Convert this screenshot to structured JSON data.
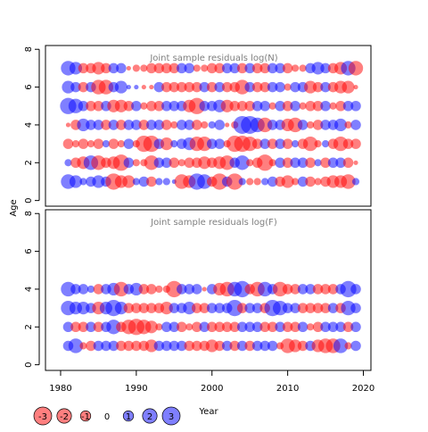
{
  "chart_data": {
    "type": "bubble",
    "shared_xlabel": "Year",
    "shared_ylabel": "Age",
    "xlim": [
      1978,
      2021
    ],
    "x_ticks": [
      1980,
      1990,
      2000,
      2010,
      2020
    ],
    "colors": {
      "positive": "#0000ff",
      "negative": "#ff0000",
      "fill_opacity": 0.5
    },
    "panels": [
      {
        "id": "top",
        "title": "Joint sample residuals log(N)",
        "ylim": [
          -0.3,
          8.2
        ],
        "y_ticks": [
          0,
          2,
          4,
          6,
          8
        ],
        "years": [
          1981,
          1982,
          1983,
          1984,
          1985,
          1986,
          1987,
          1988,
          1989,
          1990,
          1991,
          1992,
          1993,
          1994,
          1995,
          1996,
          1997,
          1998,
          1999,
          2000,
          2001,
          2002,
          2003,
          2004,
          2005,
          2006,
          2007,
          2008,
          2009,
          2010,
          2011,
          2012,
          2013,
          2014,
          2015,
          2016,
          2017,
          2018,
          2019
        ],
        "rows": [
          {
            "age": 1,
            "residuals": [
              2,
              1.5,
              0.5,
              1,
              1.5,
              1,
              -2.5,
              -1.5,
              -1.5,
              0.5,
              1,
              -1,
              0.5,
              0.5,
              0.2,
              -2,
              -1.5,
              2.5,
              2,
              -1,
              -2.5,
              1,
              -2.5,
              0.5,
              -0.5,
              -0.5,
              0.5,
              1,
              -1,
              -1.5,
              -0.5,
              1,
              -1,
              -0.5,
              -1,
              -1.5,
              -1.5,
              -2,
              0.5
            ]
          },
          {
            "age": 2,
            "residuals": [
              0.5,
              -1,
              -1.5,
              2,
              -2,
              -1,
              -1.5,
              -2.5,
              1,
              -0.5,
              -0.5,
              -2,
              1,
              1,
              -1,
              -0.5,
              -1,
              -1,
              -1.5,
              -1,
              -1.5,
              -2,
              1,
              2,
              -0.5,
              -1,
              -2.5,
              -0.5,
              1,
              -1,
              1,
              1,
              -1,
              0.5,
              -1,
              1,
              1,
              -1,
              -0.2
            ]
          },
          {
            "age": 3,
            "residuals": [
              -1,
              -0.5,
              -1,
              -0.5,
              -1,
              0.5,
              -1,
              -0.5,
              1,
              -0.5,
              -2.5,
              -2.5,
              1,
              -1.5,
              0.5,
              1,
              1.5,
              -2,
              -2,
              1,
              1,
              -0.5,
              -2.5,
              -2.5,
              -2,
              -1,
              1,
              -1,
              1,
              -1,
              0.5,
              -1,
              -2,
              -0.5,
              0.5,
              -1,
              -2,
              -1,
              -1
            ]
          },
          {
            "age": 4,
            "residuals": [
              -0.2,
              -1,
              1.5,
              1,
              1,
              -1,
              1,
              -1,
              1,
              1,
              -1,
              1,
              1,
              -1,
              -0.5,
              1,
              1,
              -1,
              -0.5,
              0.5,
              1,
              -0.2,
              -0.5,
              3,
              3,
              2,
              -2,
              1,
              1,
              -1.5,
              -2,
              1,
              -0.5,
              -1,
              1,
              1,
              1.5,
              -0.5,
              1
            ]
          },
          {
            "age": 5,
            "residuals": [
              2.5,
              2,
              1,
              -1,
              -1,
              1,
              -1.5,
              -1.5,
              -1,
              1,
              -0.5,
              -1,
              -1,
              1,
              1,
              1,
              -1.5,
              -2.5,
              1,
              1,
              1.5,
              -1.5,
              -1,
              -1,
              -1,
              1,
              1,
              -0.5,
              1,
              -1,
              1,
              -0.5,
              -1,
              -1,
              1,
              -0.5,
              -1,
              1,
              1
            ]
          },
          {
            "age": 6,
            "residuals": [
              1.5,
              1,
              -1,
              1,
              -2,
              -2,
              1,
              1.5,
              0.2,
              0.2,
              -0.2,
              -0.2,
              1,
              -1,
              -1,
              -1,
              -1,
              -1,
              1,
              -1,
              1,
              -1,
              -1,
              -2,
              1,
              -1,
              -1,
              1,
              1,
              -0.5,
              1,
              1,
              -1.5,
              -1,
              1,
              -1,
              -1.5,
              -1.5,
              -0.2
            ]
          },
          {
            "age": 7,
            "residuals": [
              2,
              1.5,
              -1,
              -1,
              -1.5,
              -1,
              1,
              1,
              -0.2,
              -0.5,
              -0.5,
              -1,
              -1,
              -1,
              -1,
              1,
              1,
              -0.5,
              -0.5,
              -1,
              -1,
              1,
              1,
              -1,
              1,
              -1,
              -1,
              1,
              1,
              -1,
              -0.5,
              -0.5,
              1,
              1.5,
              1,
              -1,
              -1.5,
              2,
              -2
            ]
          }
        ]
      },
      {
        "id": "bottom",
        "title": "Joint sample residuals log(F)",
        "ylim": [
          -0.3,
          8.2
        ],
        "y_ticks": [
          0,
          2,
          4,
          6,
          8
        ],
        "years": [
          1981,
          1982,
          1983,
          1984,
          1985,
          1986,
          1987,
          1988,
          1989,
          1990,
          1991,
          1992,
          1993,
          1994,
          1995,
          1996,
          1997,
          1998,
          1999,
          2000,
          2001,
          2002,
          2003,
          2004,
          2005,
          2006,
          2007,
          2008,
          2009,
          2010,
          2011,
          2012,
          2013,
          2014,
          2015,
          2016,
          2017,
          2018,
          2019
        ],
        "rows": [
          {
            "age": 1,
            "residuals": [
              1,
              2,
              -0.5,
              -1,
              1,
              1,
              1,
              -1,
              -1,
              -1,
              -1,
              -1.5,
              1,
              1,
              1,
              1,
              -1,
              -1,
              -1,
              -1.5,
              -1,
              1,
              -1,
              1,
              -1,
              1,
              1,
              1,
              -0.5,
              -2,
              -1.5,
              -1,
              1,
              -1.5,
              -2,
              -2,
              2,
              -0.5,
              1
            ]
          },
          {
            "age": 2,
            "residuals": [
              1,
              -1,
              -1,
              1,
              -1,
              1,
              2,
              -1,
              -2,
              -2.5,
              -2,
              -1.5,
              -0.5,
              1,
              1,
              -1,
              -0.5,
              -1,
              1,
              -1,
              -1,
              -1,
              -1,
              1,
              1,
              1,
              -1,
              -1,
              1,
              -1,
              -1,
              1,
              -0.5,
              -1,
              1,
              1,
              1,
              -1,
              1
            ]
          },
          {
            "age": 3,
            "residuals": [
              2,
              1.5,
              1.5,
              1,
              -1.5,
              1.5,
              2.5,
              1.5,
              -1,
              -1,
              -1,
              -1,
              -1,
              -1.5,
              1,
              1,
              1.5,
              -1,
              -1,
              1,
              1,
              1,
              2.5,
              -1,
              1,
              1,
              -1,
              2.5,
              2,
              1,
              1,
              -1,
              -1,
              -1,
              -1,
              1,
              -1,
              2,
              1
            ]
          },
          {
            "age": 4,
            "residuals": [
              2,
              1,
              1,
              0.5,
              -1,
              1,
              1.5,
              -2,
              1,
              1.5,
              -1,
              -1,
              -0.5,
              -0.5,
              -2.5,
              1,
              1,
              1,
              -0.2,
              1,
              -1.5,
              -2,
              2,
              2.5,
              -1,
              -2,
              2,
              1,
              -2,
              -1,
              -1,
              1,
              1,
              -1,
              -1,
              -1,
              1,
              2.5,
              1
            ]
          }
        ]
      }
    ],
    "legend": {
      "labels": [
        "-3",
        "-2",
        "-1",
        "0",
        "1",
        "2",
        "3"
      ],
      "values": [
        -3,
        -2,
        -1,
        0,
        1,
        2,
        3
      ]
    }
  }
}
